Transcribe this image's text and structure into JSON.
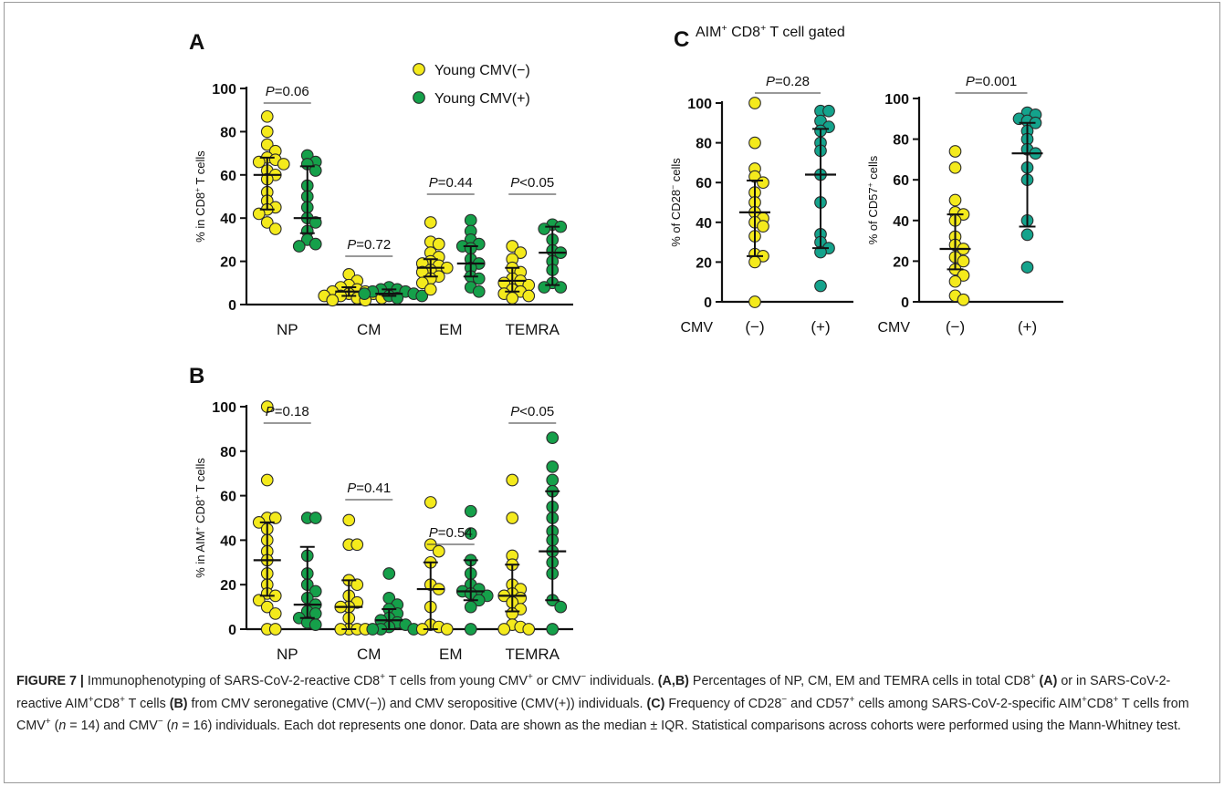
{
  "colors": {
    "yellow": "#F4EA1C",
    "green": "#15A04A",
    "teal": "#14A38C",
    "edge": "#2b2b2b"
  },
  "legend": [
    {
      "label": "Young CMV(−)",
      "color": "#F4EA1C"
    },
    {
      "label": "Young CMV(+)",
      "color": "#15A04A"
    }
  ],
  "caption": {
    "figure_label": "FIGURE 7 |",
    "text": [
      {
        "t": " Immunophenotyping of SARS-CoV-2-reactive CD8"
      },
      {
        "sup": "+"
      },
      {
        "t": " T cells from young CMV"
      },
      {
        "sup": "+"
      },
      {
        "t": " or CMV"
      },
      {
        "sup": "−"
      },
      {
        "t": " individuals. "
      },
      {
        "b": "(A,B)"
      },
      {
        "t": " Percentages of NP, CM, EM and TEMRA cells in total CD8"
      },
      {
        "sup": "+"
      },
      {
        "t": " "
      },
      {
        "b": "(A)"
      },
      {
        "t": " or in SARS-CoV-2-reactive AIM"
      },
      {
        "sup": "+"
      },
      {
        "t": "CD8"
      },
      {
        "sup": "+"
      },
      {
        "t": " T cells "
      },
      {
        "b": "(B)"
      },
      {
        "t": " from CMV seronegative (CMV(−)) and CMV seropositive (CMV(+)) individuals. "
      },
      {
        "b": "(C)"
      },
      {
        "t": " Frequency of CD28"
      },
      {
        "sup": "−"
      },
      {
        "t": " and CD57"
      },
      {
        "sup": "+"
      },
      {
        "t": " cells among SARS-CoV-2-specific AIM"
      },
      {
        "sup": "+"
      },
      {
        "t": "CD8"
      },
      {
        "sup": "+"
      },
      {
        "t": " T cells from CMV"
      },
      {
        "sup": "+"
      },
      {
        "t": " ("
      },
      {
        "i": "n"
      },
      {
        "t": " = 14) and CMV"
      },
      {
        "sup": "−"
      },
      {
        "t": " ("
      },
      {
        "i": "n"
      },
      {
        "t": " = 16) individuals. Each dot represents one donor. Data are shown as the median ± IQR. Statistical comparisons across cohorts were performed using the Mann-Whitney test."
      }
    ]
  },
  "chart_data": [
    {
      "panel": "A",
      "type": "scatter",
      "ylabel": [
        "% in CD8",
        "+",
        " T cells"
      ],
      "ylim": [
        0,
        100
      ],
      "yticks": [
        0,
        20,
        40,
        60,
        80,
        100
      ],
      "categories": [
        "NP",
        "CM",
        "EM",
        "TEMRA"
      ],
      "pvalues": [
        "=0.06",
        "=0.72",
        "=0.44",
        "<0.05"
      ],
      "groups": [
        {
          "category": "NP",
          "cmv": "neg",
          "median": 60,
          "q1": 44,
          "q3": 68,
          "values": [
            87,
            80,
            74,
            71,
            68,
            67,
            66,
            65,
            62,
            60,
            58,
            52,
            48,
            45,
            44,
            42,
            38,
            35
          ]
        },
        {
          "category": "NP",
          "cmv": "pos",
          "median": 40,
          "q1": 33,
          "q3": 64,
          "values": [
            69,
            66,
            65,
            62,
            55,
            50,
            45,
            40,
            38,
            34,
            30,
            28,
            27
          ]
        },
        {
          "category": "CM",
          "cmv": "neg",
          "median": 6,
          "q1": 4,
          "q3": 8,
          "values": [
            14,
            11,
            9,
            8,
            7,
            6,
            6,
            5,
            5,
            4,
            4,
            3,
            3,
            2,
            2
          ]
        },
        {
          "category": "CM",
          "cmv": "pos",
          "median": 5,
          "q1": 4,
          "q3": 7,
          "values": [
            8,
            7,
            7,
            6,
            6,
            5,
            5,
            4,
            4,
            3
          ]
        },
        {
          "category": "EM",
          "cmv": "neg",
          "median": 17,
          "q1": 13,
          "q3": 21,
          "values": [
            38,
            29,
            28,
            24,
            22,
            20,
            19,
            18,
            17,
            16,
            15,
            13,
            12,
            10,
            7
          ]
        },
        {
          "category": "EM",
          "cmv": "pos",
          "median": 19,
          "q1": 13,
          "q3": 27,
          "values": [
            39,
            34,
            30,
            28,
            27,
            26,
            21,
            19,
            17,
            13,
            12,
            8,
            6
          ]
        },
        {
          "category": "TEMRA",
          "cmv": "neg",
          "median": 11,
          "q1": 6,
          "q3": 17,
          "values": [
            27,
            24,
            21,
            17,
            15,
            12,
            11,
            10,
            9,
            7,
            6,
            5,
            4,
            3
          ]
        },
        {
          "category": "TEMRA",
          "cmv": "pos",
          "median": 24,
          "q1": 9,
          "q3": 36,
          "values": [
            37,
            36,
            35,
            30,
            25,
            24,
            20,
            16,
            10,
            8,
            8
          ]
        }
      ]
    },
    {
      "panel": "B",
      "type": "scatter",
      "ylabel": [
        "% in AIM",
        "+",
        " CD8",
        "+",
        " T cells"
      ],
      "ylim": [
        0,
        100
      ],
      "yticks": [
        0,
        20,
        40,
        60,
        80,
        100
      ],
      "categories": [
        "NP",
        "CM",
        "EM",
        "TEMRA"
      ],
      "pvalues": [
        "=0.18",
        "=0.41",
        "=0.54",
        "<0.05"
      ],
      "groups": [
        {
          "category": "NP",
          "cmv": "neg",
          "median": 31,
          "q1": 15,
          "q3": 48,
          "values": [
            100,
            67,
            50,
            50,
            48,
            45,
            40,
            35,
            31,
            25,
            20,
            16,
            15,
            13,
            10,
            7,
            0,
            0
          ]
        },
        {
          "category": "NP",
          "cmv": "pos",
          "median": 11,
          "q1": 5,
          "q3": 37,
          "values": [
            50,
            50,
            33,
            25,
            20,
            17,
            14,
            11,
            8,
            7,
            5,
            3,
            2
          ]
        },
        {
          "category": "CM",
          "cmv": "neg",
          "median": 10,
          "q1": 0,
          "q3": 22,
          "values": [
            49,
            38,
            38,
            22,
            20,
            15,
            12,
            10,
            10,
            5,
            0,
            0,
            0,
            0
          ]
        },
        {
          "category": "CM",
          "cmv": "pos",
          "median": 4,
          "q1": 0,
          "q3": 9,
          "values": [
            25,
            14,
            11,
            9,
            7,
            5,
            4,
            3,
            2,
            1,
            0,
            0,
            0
          ]
        },
        {
          "category": "EM",
          "cmv": "neg",
          "median": 18,
          "q1": 0,
          "q3": 30,
          "values": [
            57,
            38,
            35,
            30,
            20,
            18,
            10,
            2,
            1,
            0,
            0
          ]
        },
        {
          "category": "EM",
          "cmv": "pos",
          "median": 17,
          "q1": 13,
          "q3": 31,
          "values": [
            53,
            43,
            31,
            25,
            20,
            18,
            17,
            16,
            15,
            13,
            10,
            0
          ]
        },
        {
          "category": "TEMRA",
          "cmv": "neg",
          "median": 15,
          "q1": 8,
          "q3": 29,
          "values": [
            67,
            50,
            33,
            29,
            20,
            18,
            16,
            15,
            14,
            12,
            9,
            7,
            2,
            1,
            0,
            0
          ]
        },
        {
          "category": "TEMRA",
          "cmv": "pos",
          "median": 35,
          "q1": 13,
          "q3": 62,
          "values": [
            86,
            73,
            67,
            62,
            55,
            50,
            44,
            40,
            35,
            30,
            25,
            13,
            10,
            0
          ]
        }
      ]
    },
    {
      "panel": "C",
      "title": [
        "AIM",
        "+",
        " CD8",
        "+",
        " T cell gated"
      ],
      "type": "scatter",
      "ylabel": [
        "% of CD28",
        "−",
        " cells"
      ],
      "ylim": [
        0,
        100
      ],
      "yticks": [
        0,
        20,
        40,
        60,
        80,
        100
      ],
      "xprefix": "CMV",
      "categories": [
        "(−)",
        "(+)"
      ],
      "pvalues": [
        "=0.28"
      ],
      "groups": [
        {
          "category": "(−)",
          "cmv": "neg",
          "median": 45,
          "q1": 23,
          "q3": 61,
          "values": [
            100,
            80,
            67,
            63,
            60,
            55,
            50,
            45,
            42,
            40,
            38,
            33,
            24,
            23,
            20,
            0
          ]
        },
        {
          "category": "(+)",
          "cmv": "pos",
          "median": 64,
          "q1": 27,
          "q3": 87,
          "values": [
            96,
            96,
            91,
            88,
            86,
            80,
            76,
            64,
            50,
            34,
            30,
            27,
            25,
            8
          ]
        }
      ]
    },
    {
      "panel": "C",
      "type": "scatter",
      "ylabel": [
        "% of CD57",
        "+",
        " cells"
      ],
      "ylim": [
        0,
        100
      ],
      "yticks": [
        0,
        20,
        40,
        60,
        80,
        100
      ],
      "xprefix": "CMV",
      "categories": [
        "(−)",
        "(+)"
      ],
      "pvalues": [
        "=0.001"
      ],
      "groups": [
        {
          "category": "(−)",
          "cmv": "neg",
          "median": 26,
          "q1": 16,
          "q3": 43,
          "values": [
            74,
            66,
            50,
            44,
            43,
            40,
            32,
            28,
            26,
            22,
            20,
            16,
            13,
            10,
            3,
            1
          ]
        },
        {
          "category": "(+)",
          "cmv": "pos",
          "median": 73,
          "q1": 37,
          "q3": 88,
          "values": [
            93,
            92,
            90,
            89,
            88,
            84,
            80,
            75,
            73,
            66,
            60,
            40,
            33,
            17
          ]
        }
      ]
    }
  ]
}
